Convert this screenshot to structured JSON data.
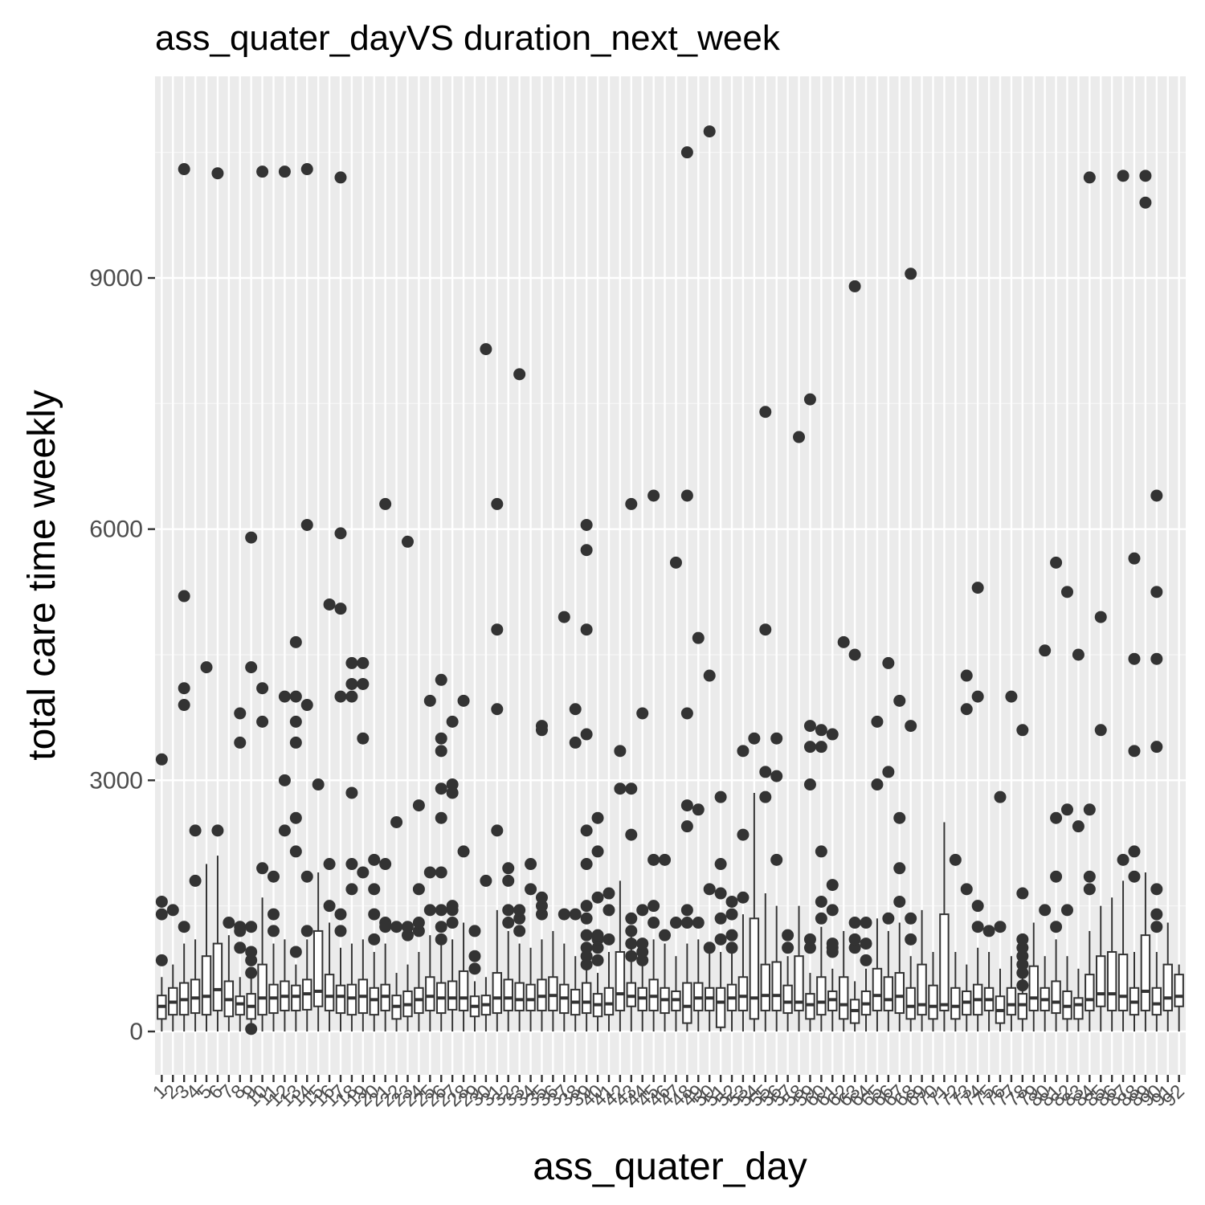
{
  "chart_data": {
    "type": "boxplot",
    "title": "ass_quater_dayVS duration_next_week",
    "xlabel": "ass_quater_day",
    "ylabel": "total care time weekly",
    "y_ticks": [
      0,
      3000,
      6000,
      9000
    ],
    "ylim": [
      -500,
      11200
    ],
    "categories": [
      "1",
      "2",
      "3",
      "4",
      "5",
      "6",
      "7",
      "8",
      "9",
      "10",
      "11",
      "12",
      "13",
      "14",
      "15",
      "16",
      "17",
      "18",
      "19",
      "20",
      "21",
      "22",
      "23",
      "24",
      "25",
      "26",
      "27",
      "28",
      "29",
      "30",
      "31",
      "32",
      "33",
      "34",
      "35",
      "36",
      "37",
      "38",
      "39",
      "40",
      "41",
      "42",
      "43",
      "44",
      "45",
      "46",
      "47",
      "48",
      "49",
      "50",
      "51",
      "52",
      "53",
      "54",
      "55",
      "56",
      "57",
      "58",
      "59",
      "60",
      "61",
      "62",
      "63",
      "64",
      "65",
      "66",
      "67",
      "68",
      "69",
      "70",
      "71",
      "72",
      "73",
      "74",
      "75",
      "76",
      "77",
      "78",
      "79",
      "80",
      "81",
      "82",
      "83",
      "84",
      "85",
      "86",
      "87",
      "88",
      "89",
      "90",
      "91",
      "92"
    ],
    "boxes": [
      {
        "q1": 150,
        "median": 300,
        "q3": 430,
        "low": 0,
        "high": 650,
        "outliers": [
          850,
          1400,
          1550,
          3250
        ]
      },
      {
        "q1": 200,
        "median": 350,
        "q3": 520,
        "low": 0,
        "high": 800,
        "outliers": [
          1450
        ]
      },
      {
        "q1": 200,
        "median": 380,
        "q3": 580,
        "low": 0,
        "high": 1050,
        "outliers": [
          1250,
          3900,
          4100,
          5200,
          10300
        ]
      },
      {
        "q1": 220,
        "median": 400,
        "q3": 620,
        "low": 0,
        "high": 1100,
        "outliers": [
          1800,
          2400
        ]
      },
      {
        "q1": 200,
        "median": 420,
        "q3": 900,
        "low": 0,
        "high": 2000,
        "outliers": [
          4350
        ]
      },
      {
        "q1": 250,
        "median": 500,
        "q3": 1050,
        "low": 0,
        "high": 2100,
        "outliers": [
          2400,
          10250
        ]
      },
      {
        "q1": 180,
        "median": 380,
        "q3": 600,
        "low": 0,
        "high": 1150,
        "outliers": [
          1300
        ]
      },
      {
        "q1": 200,
        "median": 330,
        "q3": 420,
        "low": 0,
        "high": 650,
        "outliers": [
          1250,
          1200,
          1000,
          3450,
          3800
        ]
      },
      {
        "q1": 150,
        "median": 300,
        "q3": 450,
        "low": 0,
        "high": 650,
        "outliers": [
          30,
          700,
          850,
          950,
          1250,
          4350,
          5900
        ]
      },
      {
        "q1": 200,
        "median": 400,
        "q3": 800,
        "low": 0,
        "high": 1600,
        "outliers": [
          1950,
          3700,
          4100,
          10270
        ]
      },
      {
        "q1": 220,
        "median": 400,
        "q3": 560,
        "low": 0,
        "high": 1050,
        "outliers": [
          1200,
          1400,
          1850
        ]
      },
      {
        "q1": 250,
        "median": 420,
        "q3": 600,
        "low": 0,
        "high": 1100,
        "outliers": [
          2400,
          3000,
          4000,
          10270
        ]
      },
      {
        "q1": 250,
        "median": 420,
        "q3": 550,
        "low": 0,
        "high": 800,
        "outliers": [
          950,
          2150,
          2550,
          3450,
          3700,
          4000,
          4650
        ]
      },
      {
        "q1": 260,
        "median": 450,
        "q3": 620,
        "low": 0,
        "high": 1100,
        "outliers": [
          1200,
          1850,
          3900,
          6050,
          10300
        ]
      },
      {
        "q1": 300,
        "median": 480,
        "q3": 1200,
        "low": 0,
        "high": 1900,
        "outliers": [
          2950
        ]
      },
      {
        "q1": 250,
        "median": 420,
        "q3": 680,
        "low": 0,
        "high": 1300,
        "outliers": [
          1500,
          2000,
          5100
        ]
      },
      {
        "q1": 220,
        "median": 420,
        "q3": 550,
        "low": 0,
        "high": 1000,
        "outliers": [
          1200,
          1400,
          4000,
          5050,
          5950,
          10200
        ]
      },
      {
        "q1": 200,
        "median": 400,
        "q3": 560,
        "low": 0,
        "high": 1050,
        "outliers": [
          1700,
          2000,
          2850,
          4000,
          4150,
          4400
        ]
      },
      {
        "q1": 220,
        "median": 420,
        "q3": 620,
        "low": 0,
        "high": 1100,
        "outliers": [
          1900,
          3500,
          4150,
          4400
        ]
      },
      {
        "q1": 200,
        "median": 380,
        "q3": 520,
        "low": 0,
        "high": 950,
        "outliers": [
          1100,
          1400,
          1700,
          2050
        ]
      },
      {
        "q1": 250,
        "median": 420,
        "q3": 560,
        "low": 0,
        "high": 1050,
        "outliers": [
          1300,
          1250,
          2000,
          6300
        ]
      },
      {
        "q1": 150,
        "median": 300,
        "q3": 430,
        "low": 0,
        "high": 700,
        "outliers": [
          1250,
          2500
        ]
      },
      {
        "q1": 180,
        "median": 320,
        "q3": 480,
        "low": 0,
        "high": 800,
        "outliers": [
          1150,
          1250,
          5850
        ]
      },
      {
        "q1": 220,
        "median": 380,
        "q3": 520,
        "low": 0,
        "high": 950,
        "outliers": [
          1200,
          1300,
          1700,
          2700
        ]
      },
      {
        "q1": 250,
        "median": 420,
        "q3": 650,
        "low": 0,
        "high": 1150,
        "outliers": [
          1450,
          1900,
          3950
        ]
      },
      {
        "q1": 220,
        "median": 400,
        "q3": 580,
        "low": 0,
        "high": 1100,
        "outliers": [
          1100,
          1250,
          1450,
          1900,
          2550,
          2900,
          3350,
          3500,
          4200
        ]
      },
      {
        "q1": 260,
        "median": 400,
        "q3": 600,
        "low": 0,
        "high": 1100,
        "outliers": [
          1300,
          1450,
          1500,
          2850,
          2950,
          3700
        ]
      },
      {
        "q1": 250,
        "median": 400,
        "q3": 720,
        "low": 0,
        "high": 1300,
        "outliers": [
          2150,
          3950
        ]
      },
      {
        "q1": 180,
        "median": 300,
        "q3": 420,
        "low": 0,
        "high": 600,
        "outliers": [
          750,
          900,
          1200
        ]
      },
      {
        "q1": 200,
        "median": 320,
        "q3": 430,
        "low": 0,
        "high": 650,
        "outliers": [
          1800,
          8150
        ]
      },
      {
        "q1": 220,
        "median": 400,
        "q3": 700,
        "low": 0,
        "high": 1450,
        "outliers": [
          2400,
          3850,
          4800,
          6300
        ]
      },
      {
        "q1": 250,
        "median": 400,
        "q3": 620,
        "low": 0,
        "high": 1200,
        "outliers": [
          1300,
          1450,
          1800,
          1950
        ]
      },
      {
        "q1": 250,
        "median": 380,
        "q3": 580,
        "low": 0,
        "high": 1050,
        "outliers": [
          1200,
          1350,
          1450,
          7850
        ]
      },
      {
        "q1": 250,
        "median": 380,
        "q3": 560,
        "low": 0,
        "high": 1000,
        "outliers": [
          1700,
          2000
        ]
      },
      {
        "q1": 250,
        "median": 420,
        "q3": 620,
        "low": 0,
        "high": 1100,
        "outliers": [
          1400,
          1500,
          1600,
          3600,
          3650
        ]
      },
      {
        "q1": 250,
        "median": 430,
        "q3": 650,
        "low": 0,
        "high": 1200,
        "outliers": []
      },
      {
        "q1": 220,
        "median": 400,
        "q3": 560,
        "low": 0,
        "high": 1050,
        "outliers": [
          1400,
          4950
        ]
      },
      {
        "q1": 200,
        "median": 350,
        "q3": 500,
        "low": 0,
        "high": 900,
        "outliers": [
          1400,
          3450,
          3850
        ]
      },
      {
        "q1": 220,
        "median": 350,
        "q3": 580,
        "low": 0,
        "high": 1000,
        "outliers": [
          800,
          900,
          1000,
          1150,
          1350,
          1500,
          2000,
          2400,
          3550,
          4800,
          5750,
          6050
        ]
      },
      {
        "q1": 180,
        "median": 320,
        "q3": 450,
        "low": 0,
        "high": 700,
        "outliers": [
          850,
          1000,
          1100,
          1150,
          1600,
          2150,
          2550
        ]
      },
      {
        "q1": 200,
        "median": 330,
        "q3": 520,
        "low": 0,
        "high": 950,
        "outliers": [
          1100,
          1450,
          1650
        ]
      },
      {
        "q1": 250,
        "median": 450,
        "q3": 950,
        "low": 0,
        "high": 1800,
        "outliers": [
          2900,
          3350
        ]
      },
      {
        "q1": 300,
        "median": 420,
        "q3": 580,
        "low": 0,
        "high": 1150,
        "outliers": [
          900,
          1050,
          1200,
          1350,
          2350,
          2900,
          6300
        ]
      },
      {
        "q1": 250,
        "median": 400,
        "q3": 520,
        "low": 0,
        "high": 800,
        "outliers": [
          850,
          950,
          1050,
          1450,
          3800
        ]
      },
      {
        "q1": 250,
        "median": 420,
        "q3": 620,
        "low": 0,
        "high": 1100,
        "outliers": [
          1300,
          1500,
          2050,
          6400
        ]
      },
      {
        "q1": 220,
        "median": 380,
        "q3": 520,
        "low": 0,
        "high": 1050,
        "outliers": [
          1150,
          2050
        ]
      },
      {
        "q1": 250,
        "median": 380,
        "q3": 480,
        "low": 0,
        "high": 900,
        "outliers": [
          1300,
          5600
        ]
      },
      {
        "q1": 100,
        "median": 300,
        "q3": 580,
        "low": 0,
        "high": 1050,
        "outliers": [
          1300,
          1450,
          2450,
          2700,
          3800,
          6400,
          10500
        ]
      },
      {
        "q1": 250,
        "median": 400,
        "q3": 580,
        "low": 0,
        "high": 1100,
        "outliers": [
          1300,
          2650,
          4700
        ]
      },
      {
        "q1": 250,
        "median": 400,
        "q3": 520,
        "low": 0,
        "high": 950,
        "outliers": [
          1000,
          1700,
          4250,
          10750
        ]
      },
      {
        "q1": 50,
        "median": 350,
        "q3": 520,
        "low": 0,
        "high": 950,
        "outliers": [
          1100,
          1350,
          1650,
          2000,
          2800
        ]
      },
      {
        "q1": 250,
        "median": 400,
        "q3": 560,
        "low": 0,
        "high": 1000,
        "outliers": [
          1000,
          1150,
          1400,
          1550
        ]
      },
      {
        "q1": 250,
        "median": 420,
        "q3": 650,
        "low": 0,
        "high": 1400,
        "outliers": [
          1600,
          2350,
          3350
        ]
      },
      {
        "q1": 150,
        "median": 400,
        "q3": 1350,
        "low": 0,
        "high": 2850,
        "outliers": [
          3500
        ]
      },
      {
        "q1": 250,
        "median": 430,
        "q3": 800,
        "low": 0,
        "high": 1650,
        "outliers": [
          2800,
          3100,
          4800,
          7400
        ]
      },
      {
        "q1": 250,
        "median": 430,
        "q3": 830,
        "low": 0,
        "high": 1500,
        "outliers": [
          2050,
          3050,
          3500
        ]
      },
      {
        "q1": 220,
        "median": 350,
        "q3": 550,
        "low": 0,
        "high": 900,
        "outliers": [
          1000,
          1150
        ]
      },
      {
        "q1": 250,
        "median": 350,
        "q3": 900,
        "low": 0,
        "high": 1500,
        "outliers": [
          7100
        ]
      },
      {
        "q1": 150,
        "median": 320,
        "q3": 450,
        "low": 0,
        "high": 700,
        "outliers": [
          1000,
          1100,
          2950,
          3400,
          3650,
          7550
        ]
      },
      {
        "q1": 200,
        "median": 350,
        "q3": 650,
        "low": 0,
        "high": 1250,
        "outliers": [
          1350,
          1550,
          2150,
          3400,
          3600
        ]
      },
      {
        "q1": 250,
        "median": 380,
        "q3": 480,
        "low": 0,
        "high": 750,
        "outliers": [
          950,
          1000,
          1050,
          1450,
          1750,
          3550
        ]
      },
      {
        "q1": 150,
        "median": 320,
        "q3": 650,
        "low": 0,
        "high": 1200,
        "outliers": [
          4650
        ]
      },
      {
        "q1": 100,
        "median": 250,
        "q3": 380,
        "low": 0,
        "high": 600,
        "outliers": [
          1000,
          1100,
          1300,
          4500,
          8900
        ]
      },
      {
        "q1": 200,
        "median": 330,
        "q3": 480,
        "low": 0,
        "high": 750,
        "outliers": [
          850,
          1050,
          1300
        ]
      },
      {
        "q1": 250,
        "median": 430,
        "q3": 750,
        "low": 0,
        "high": 1350,
        "outliers": [
          2950,
          3700
        ]
      },
      {
        "q1": 250,
        "median": 380,
        "q3": 650,
        "low": 0,
        "high": 1200,
        "outliers": [
          1350,
          3100,
          4400
        ]
      },
      {
        "q1": 220,
        "median": 420,
        "q3": 700,
        "low": 0,
        "high": 1300,
        "outliers": [
          1550,
          1950,
          2550,
          3950
        ]
      },
      {
        "q1": 150,
        "median": 300,
        "q3": 520,
        "low": 0,
        "high": 900,
        "outliers": [
          1100,
          1350,
          3650,
          9050
        ]
      },
      {
        "q1": 200,
        "median": 320,
        "q3": 800,
        "low": 0,
        "high": 1450,
        "outliers": []
      },
      {
        "q1": 150,
        "median": 300,
        "q3": 550,
        "low": 0,
        "high": 950,
        "outliers": []
      },
      {
        "q1": 250,
        "median": 320,
        "q3": 1400,
        "low": 0,
        "high": 2500,
        "outliers": []
      },
      {
        "q1": 150,
        "median": 300,
        "q3": 520,
        "low": 0,
        "high": 950,
        "outliers": [
          2050
        ]
      },
      {
        "q1": 200,
        "median": 350,
        "q3": 480,
        "low": 0,
        "high": 800,
        "outliers": [
          1700,
          3850,
          4250
        ]
      },
      {
        "q1": 200,
        "median": 380,
        "q3": 560,
        "low": 0,
        "high": 1000,
        "outliers": [
          1250,
          1500,
          4000,
          5300
        ]
      },
      {
        "q1": 250,
        "median": 380,
        "q3": 520,
        "low": 0,
        "high": 950,
        "outliers": [
          1200
        ]
      },
      {
        "q1": 100,
        "median": 250,
        "q3": 420,
        "low": 0,
        "high": 750,
        "outliers": [
          1250,
          2800
        ]
      },
      {
        "q1": 200,
        "median": 320,
        "q3": 520,
        "low": 0,
        "high": 900,
        "outliers": [
          4000
        ]
      },
      {
        "q1": 150,
        "median": 320,
        "q3": 450,
        "low": 0,
        "high": 650,
        "outliers": [
          550,
          700,
          800,
          900,
          1000,
          1100,
          1650,
          3600
        ]
      },
      {
        "q1": 250,
        "median": 400,
        "q3": 780,
        "low": 0,
        "high": 1300,
        "outliers": []
      },
      {
        "q1": 250,
        "median": 380,
        "q3": 520,
        "low": 0,
        "high": 900,
        "outliers": [
          1450,
          4550
        ]
      },
      {
        "q1": 220,
        "median": 350,
        "q3": 600,
        "low": 0,
        "high": 1100,
        "outliers": [
          1250,
          1850,
          2550,
          5600
        ]
      },
      {
        "q1": 150,
        "median": 300,
        "q3": 480,
        "low": 0,
        "high": 900,
        "outliers": [
          1450,
          2650,
          5250
        ]
      },
      {
        "q1": 150,
        "median": 320,
        "q3": 400,
        "low": 0,
        "high": 750,
        "outliers": [
          2450,
          4500
        ]
      },
      {
        "q1": 250,
        "median": 380,
        "q3": 680,
        "low": 0,
        "high": 1200,
        "outliers": [
          1700,
          1850,
          2650,
          10200
        ]
      },
      {
        "q1": 300,
        "median": 450,
        "q3": 900,
        "low": 0,
        "high": 1500,
        "outliers": [
          3600,
          4950
        ]
      },
      {
        "q1": 250,
        "median": 450,
        "q3": 950,
        "low": 0,
        "high": 1600,
        "outliers": []
      },
      {
        "q1": 250,
        "median": 420,
        "q3": 920,
        "low": 0,
        "high": 1800,
        "outliers": [
          2050,
          10220
        ]
      },
      {
        "q1": 200,
        "median": 350,
        "q3": 520,
        "low": 0,
        "high": 950,
        "outliers": [
          1850,
          2150,
          3350,
          4450,
          5650
        ]
      },
      {
        "q1": 250,
        "median": 480,
        "q3": 1150,
        "low": 0,
        "high": 1900,
        "outliers": [
          9900,
          10220
        ]
      },
      {
        "q1": 200,
        "median": 330,
        "q3": 520,
        "low": 0,
        "high": 950,
        "outliers": [
          1250,
          1400,
          1700,
          3400,
          4450,
          5250,
          6400
        ]
      },
      {
        "q1": 250,
        "median": 400,
        "q3": 800,
        "low": 0,
        "high": 1300,
        "outliers": []
      },
      {
        "q1": 300,
        "median": 420,
        "q3": 680,
        "low": 0,
        "high": 800,
        "outliers": []
      }
    ]
  }
}
